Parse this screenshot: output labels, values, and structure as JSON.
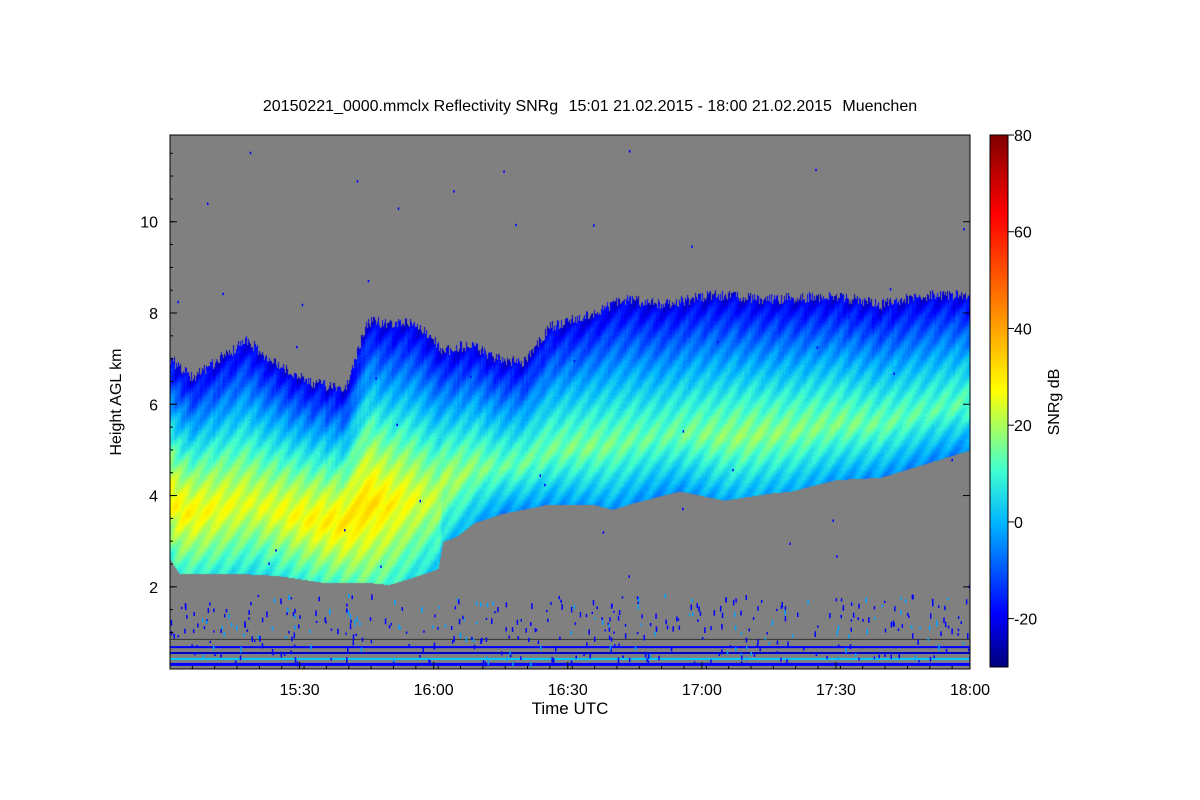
{
  "chart_data": {
    "type": "heatmap",
    "title": {
      "file": "20150221_0000.mmclx Reflectivity SNRg",
      "time_range": "15:01 21.02.2015 - 18:00 21.02.2015",
      "location": "Muenchen"
    },
    "xlabel": "Time UTC",
    "ylabel": "Height AGL km",
    "colorbar_label": "SNRg dB",
    "x_range_minutes_utc": [
      901,
      1080
    ],
    "x_ticks": [
      {
        "value": 930,
        "label": "15:30"
      },
      {
        "value": 960,
        "label": "16:00"
      },
      {
        "value": 990,
        "label": "16:30"
      },
      {
        "value": 1020,
        "label": "17:00"
      },
      {
        "value": 1050,
        "label": "17:30"
      },
      {
        "value": 1080,
        "label": "18:00"
      }
    ],
    "y_range_km": [
      0.2,
      11.9
    ],
    "y_ticks": [
      {
        "value": 2,
        "label": "2"
      },
      {
        "value": 4,
        "label": "4"
      },
      {
        "value": 6,
        "label": "6"
      },
      {
        "value": 8,
        "label": "8"
      },
      {
        "value": 10,
        "label": "10"
      }
    ],
    "color_range_db": [
      -30,
      80
    ],
    "colorbar_ticks": [
      {
        "value": -20,
        "label": "-20"
      },
      {
        "value": 0,
        "label": "0"
      },
      {
        "value": 20,
        "label": "20"
      },
      {
        "value": 40,
        "label": "40"
      },
      {
        "value": 60,
        "label": "60"
      },
      {
        "value": 80,
        "label": "80"
      }
    ],
    "no_signal_color": "#808080",
    "echo_layer": {
      "description": "precipitating cloud layer",
      "base_km": [
        {
          "t": 901,
          "h": 2.6
        },
        {
          "t": 903,
          "h": 2.3
        },
        {
          "t": 915,
          "h": 2.3
        },
        {
          "t": 925,
          "h": 2.25
        },
        {
          "t": 935,
          "h": 2.1
        },
        {
          "t": 945,
          "h": 2.1
        },
        {
          "t": 950,
          "h": 2.05
        },
        {
          "t": 955,
          "h": 2.2
        },
        {
          "t": 961,
          "h": 2.4
        },
        {
          "t": 962,
          "h": 3.0
        },
        {
          "t": 965,
          "h": 3.1
        },
        {
          "t": 969,
          "h": 3.4
        },
        {
          "t": 975,
          "h": 3.6
        },
        {
          "t": 985,
          "h": 3.8
        },
        {
          "t": 996,
          "h": 3.8
        },
        {
          "t": 1000,
          "h": 3.7
        },
        {
          "t": 1005,
          "h": 3.85
        },
        {
          "t": 1015,
          "h": 4.1
        },
        {
          "t": 1025,
          "h": 3.9
        },
        {
          "t": 1035,
          "h": 4.05
        },
        {
          "t": 1040,
          "h": 4.1
        },
        {
          "t": 1050,
          "h": 4.35
        },
        {
          "t": 1060,
          "h": 4.4
        },
        {
          "t": 1070,
          "h": 4.7
        },
        {
          "t": 1080,
          "h": 5.0
        }
      ],
      "top_km": [
        {
          "t": 901,
          "h": 7.0
        },
        {
          "t": 906,
          "h": 6.6
        },
        {
          "t": 912,
          "h": 7.0
        },
        {
          "t": 918,
          "h": 7.4
        },
        {
          "t": 925,
          "h": 6.9
        },
        {
          "t": 932,
          "h": 6.5
        },
        {
          "t": 940,
          "h": 6.3
        },
        {
          "t": 945,
          "h": 7.8
        },
        {
          "t": 956,
          "h": 7.8
        },
        {
          "t": 962,
          "h": 7.2
        },
        {
          "t": 968,
          "h": 7.3
        },
        {
          "t": 974,
          "h": 7.0
        },
        {
          "t": 980,
          "h": 6.9
        },
        {
          "t": 986,
          "h": 7.7
        },
        {
          "t": 995,
          "h": 8.0
        },
        {
          "t": 1003,
          "h": 8.3
        },
        {
          "t": 1012,
          "h": 8.2
        },
        {
          "t": 1022,
          "h": 8.4
        },
        {
          "t": 1035,
          "h": 8.3
        },
        {
          "t": 1048,
          "h": 8.4
        },
        {
          "t": 1060,
          "h": 8.2
        },
        {
          "t": 1070,
          "h": 8.4
        },
        {
          "t": 1080,
          "h": 8.4
        }
      ],
      "max_snr_db": [
        {
          "t": 905,
          "db": 28
        },
        {
          "t": 920,
          "db": 24
        },
        {
          "t": 945,
          "db": 32
        },
        {
          "t": 960,
          "db": 22
        },
        {
          "t": 975,
          "db": 14
        },
        {
          "t": 995,
          "db": 16
        },
        {
          "t": 1010,
          "db": 14
        },
        {
          "t": 1030,
          "db": 18
        },
        {
          "t": 1050,
          "db": 16
        },
        {
          "t": 1070,
          "db": 13
        }
      ]
    }
  }
}
